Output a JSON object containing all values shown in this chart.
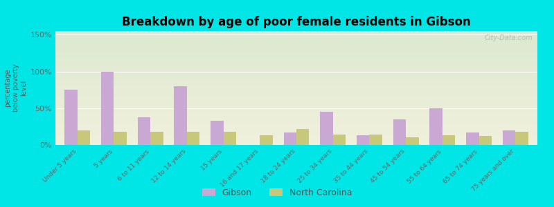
{
  "title": "Breakdown by age of poor female residents in Gibson",
  "ylabel": "percentage\nbelow poverty\nlevel",
  "categories": [
    "Under 5 years",
    "5 years",
    "6 to 11 years",
    "12 to 14 years",
    "15 years",
    "16 and 17 years",
    "18 to 24 years",
    "25 to 34 years",
    "35 to 44 years",
    "45 to 54 years",
    "55 to 64 years",
    "65 to 74 years",
    "75 years and over"
  ],
  "gibson": [
    75,
    100,
    38,
    80,
    33,
    0,
    17,
    45,
    13,
    35,
    50,
    17,
    20
  ],
  "nc": [
    20,
    18,
    18,
    18,
    18,
    13,
    22,
    14,
    14,
    10,
    13,
    12,
    18
  ],
  "gibson_color": "#c9a8d4",
  "nc_color": "#c8c87a",
  "bg_color": "#00e5e5",
  "plot_bg_top": "#dce8d0",
  "plot_bg_bottom": "#f0f0dc",
  "yticks": [
    0,
    50,
    100,
    150
  ],
  "ylim": [
    0,
    155
  ],
  "bar_width": 0.35,
  "legend_labels": [
    "Gibson",
    "North Carolina"
  ],
  "watermark": "City-Data.com"
}
